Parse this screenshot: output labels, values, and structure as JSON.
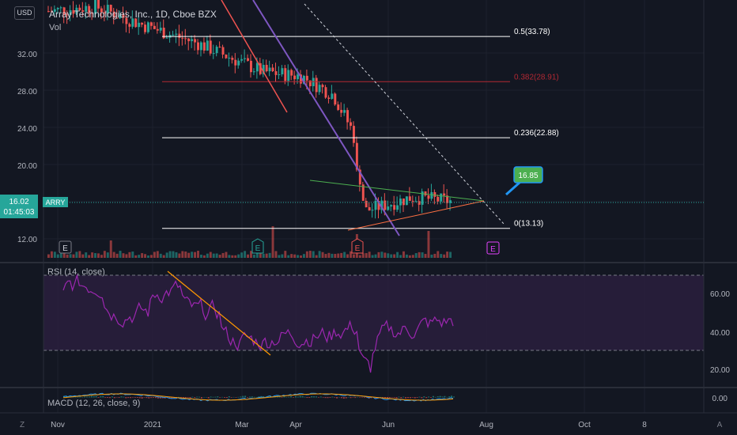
{
  "currency_button": "USD",
  "legend": {
    "symbol_title": "Array Technologies, Inc., 1D, Cboe BZX",
    "volume_label": "Vol"
  },
  "price_axis": {
    "ticks": [
      "32.00",
      "28.00",
      "24.00",
      "20.00",
      "12.00"
    ],
    "current_price": "16.02",
    "countdown": "01:45:03"
  },
  "symbol_tag": "ARRY",
  "fib_levels": [
    {
      "label": "0.5(33.78)",
      "price": 33.78,
      "color": "#ffffff"
    },
    {
      "label": "0.382(28.91)",
      "price": 28.91,
      "color": "#b22833"
    },
    {
      "label": "0.236(22.88)",
      "price": 22.88,
      "color": "#ffffff"
    },
    {
      "label": "0(13.13)",
      "price": 13.13,
      "color": "#ffffff"
    }
  ],
  "callout": {
    "text": "16.85",
    "color": "#4caf50"
  },
  "earnings_markers": [
    "E",
    "E",
    "E",
    "E"
  ],
  "rsi": {
    "label": "RSI (14, close)",
    "ticks": [
      "60.00",
      "40.00",
      "20.00"
    ],
    "upper_band": 70,
    "lower_band": 30
  },
  "macd": {
    "label": "MACD (12, 26, close, 9)",
    "tick": "0.00"
  },
  "time_axis": {
    "labels": [
      "Nov",
      "2021",
      "Mar",
      "Apr",
      "Jun",
      "Aug",
      "Oct",
      "8"
    ],
    "left_button": "Z",
    "right_button": "A"
  },
  "colors": {
    "background": "#131722",
    "up": "#26a69a",
    "down": "#ef5350",
    "rsi_line": "#9c27b0",
    "rsi_band_fill": "#2a1f3d",
    "price_tag": "#26a69a",
    "trendline_purple": "#7e57c2",
    "trendline_orange": "#ff9800",
    "trendline_green": "#4caf50"
  },
  "chart_data": {
    "type": "candlestick",
    "title": "Array Technologies, Inc., 1D, Cboe BZX",
    "y_range_price": [
      9.5,
      37
    ],
    "rsi_range": [
      10,
      75
    ],
    "current_price": 16.02,
    "approx_close_path": [
      {
        "x": "Nov",
        "price": 36.5
      },
      {
        "x": "Jan",
        "price": 37.0
      },
      {
        "x": "Feb",
        "price": 35.0
      },
      {
        "x": "Mar",
        "price": 33.0
      },
      {
        "x": "Mar-mid",
        "price": 30.0
      },
      {
        "x": "Apr",
        "price": 29.5
      },
      {
        "x": "Apr-mid",
        "price": 27.5
      },
      {
        "x": "May-early",
        "price": 23.5
      },
      {
        "x": "May-mid",
        "price": 15.0
      },
      {
        "x": "Jun",
        "price": 16.5
      },
      {
        "x": "Jun-end",
        "price": 16.02
      }
    ]
  }
}
